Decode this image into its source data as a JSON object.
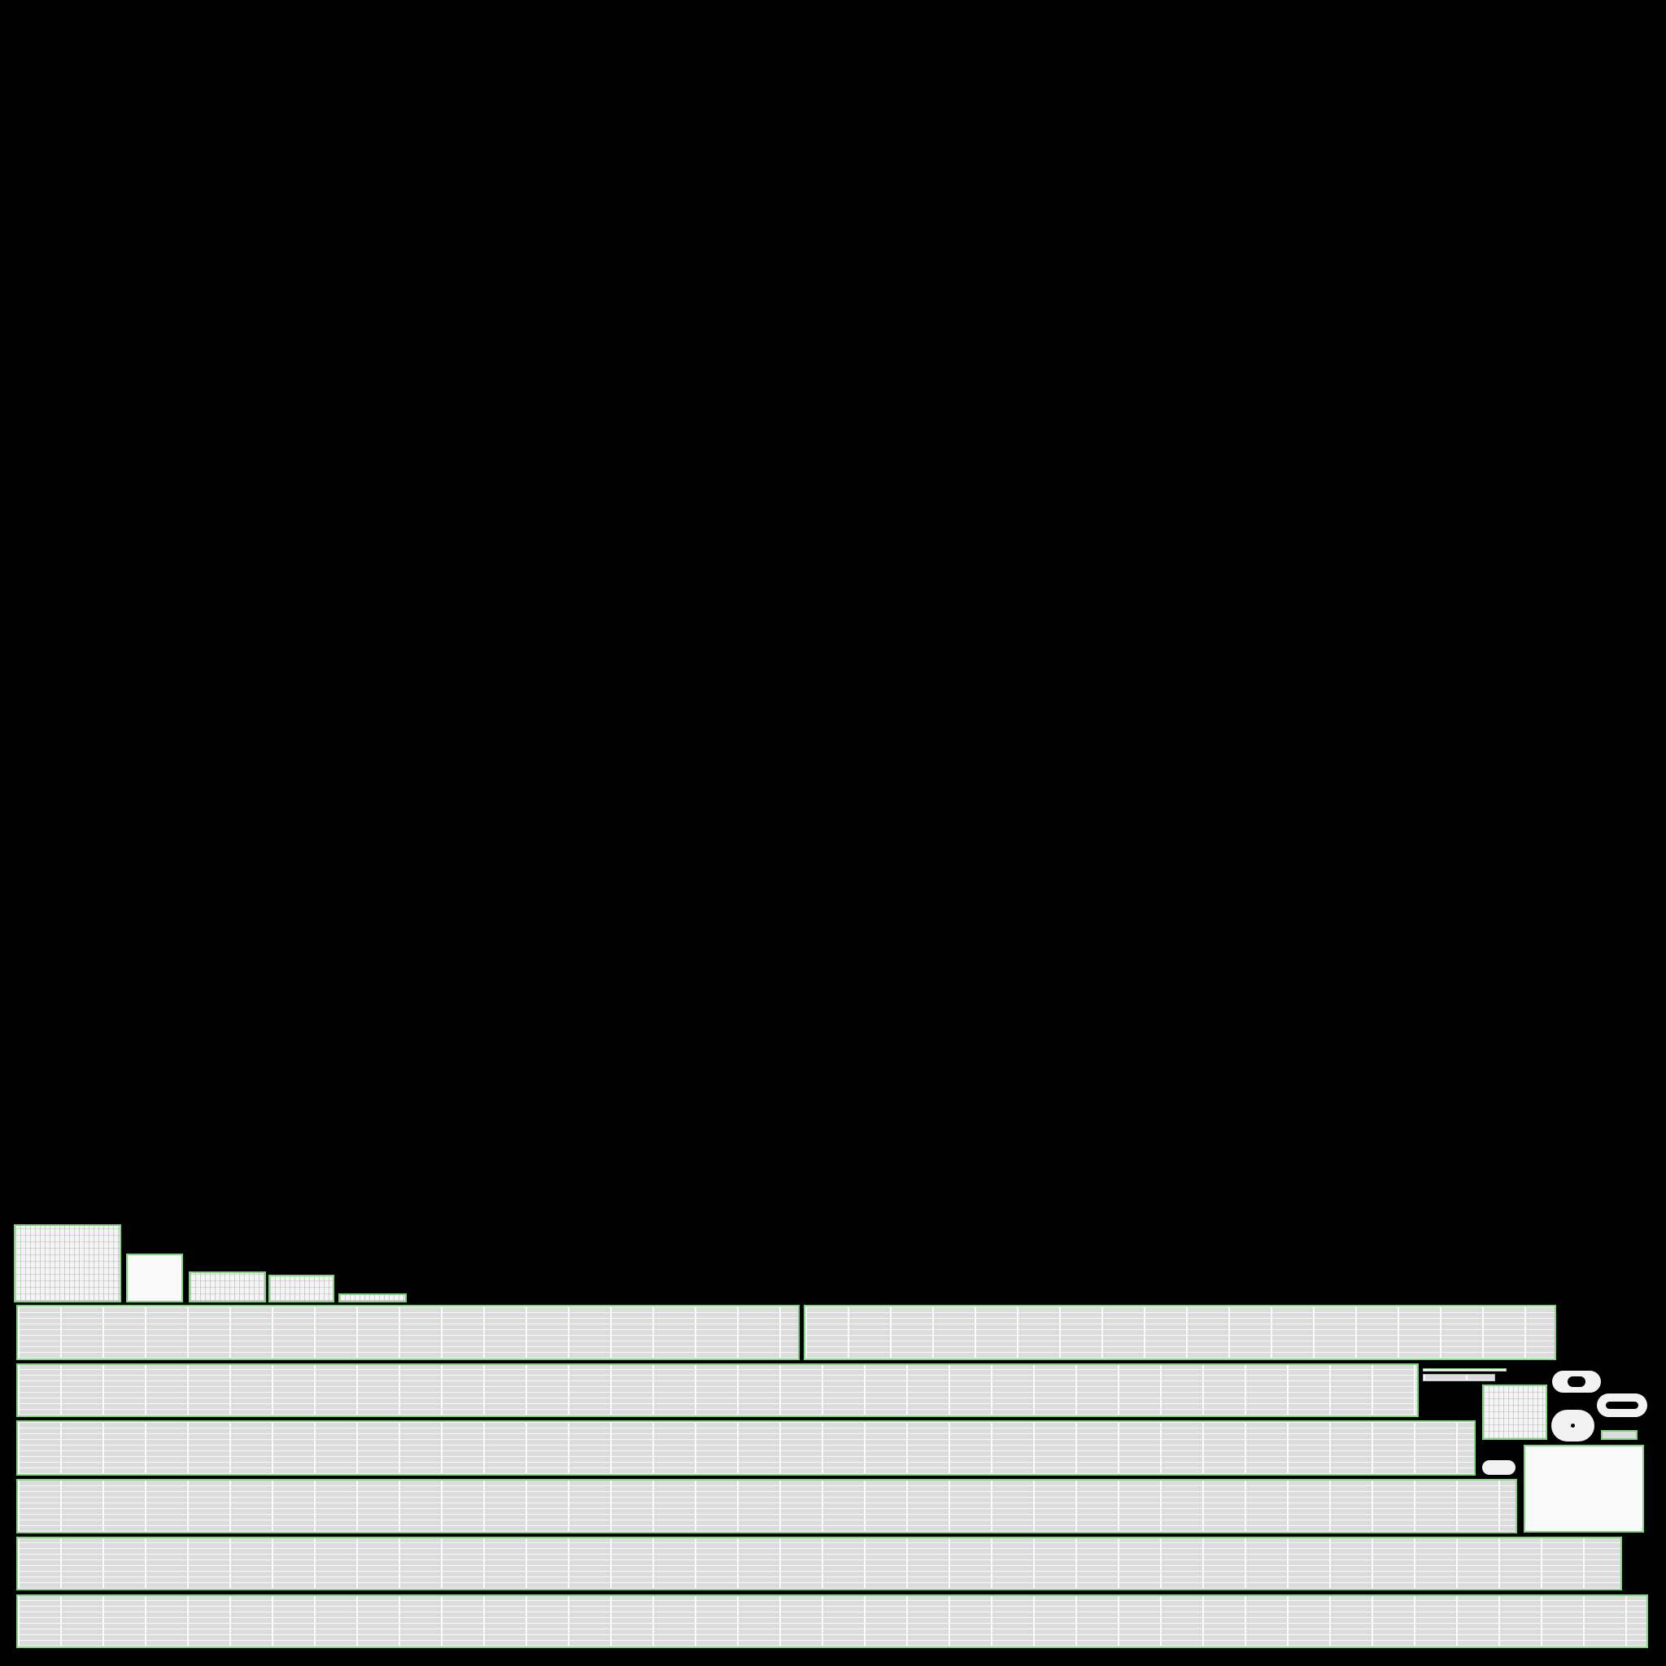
{
  "atlas": {
    "background_color": "#000000",
    "outline_color": "#7fd67f",
    "panel_color": "#dcdcdc",
    "highlight_color": "#fafafa"
  }
}
